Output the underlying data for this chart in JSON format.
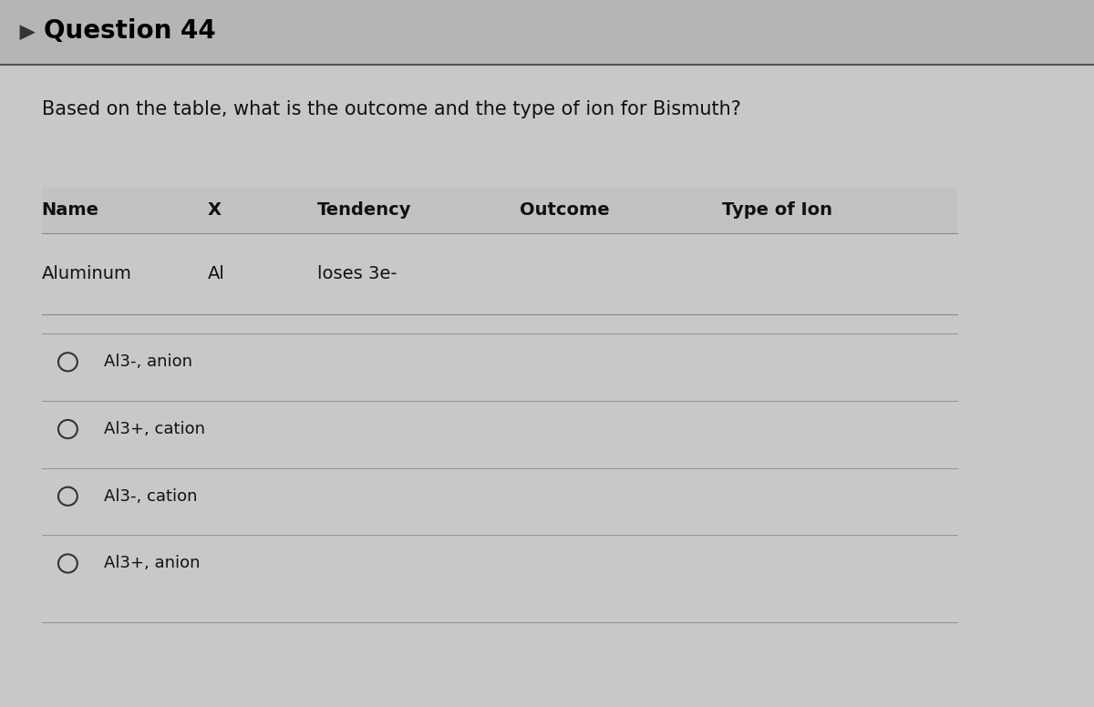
{
  "title": "Question 44",
  "question": "Based on the table, what is the outcome and the type of ion for Bismuth?",
  "table_headers": [
    "Name",
    "X",
    "Tendency",
    "Outcome",
    "Type of Ion"
  ],
  "table_row": [
    "Aluminum",
    "Al",
    "loses 3e-",
    "",
    ""
  ],
  "options": [
    "Al3-, anion",
    "Al3+, cation",
    "Al3-, cation",
    "Al3+, anion"
  ],
  "bg_color": "#c8c8c8",
  "text_color": "#111111",
  "title_color": "#000000",
  "fig_width": 12.0,
  "fig_height": 7.76
}
